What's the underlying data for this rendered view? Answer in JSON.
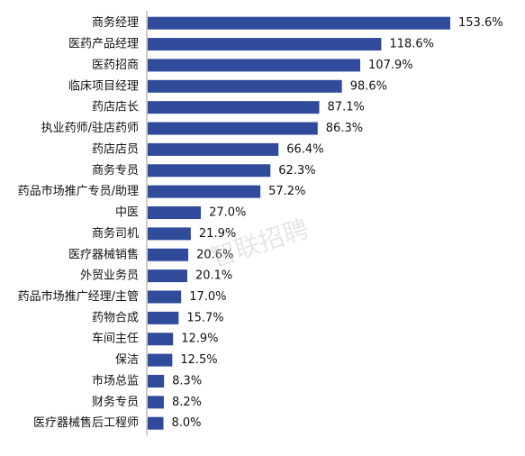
{
  "chart_data": {
    "type": "bar",
    "orientation": "horizontal",
    "categories": [
      "商务经理",
      "医药产品经理",
      "医药招商",
      "临床项目经理",
      "药店店长",
      "执业药师/驻店药师",
      "药店店员",
      "商务专员",
      "药品市场推广专员/助理",
      "中医",
      "商务司机",
      "医疗器械销售",
      "外贸业务员",
      "药品市场推广经理/主管",
      "药物合成",
      "车间主任",
      "保洁",
      "市场总监",
      "财务专员",
      "医疗器械售后工程师"
    ],
    "values": [
      153.6,
      118.6,
      107.9,
      98.6,
      87.1,
      86.3,
      66.4,
      62.3,
      57.2,
      27.0,
      21.9,
      20.6,
      20.1,
      17.0,
      15.7,
      12.9,
      12.5,
      8.3,
      8.2,
      8.0
    ],
    "value_labels": [
      "153.6%",
      "118.6%",
      "107.9%",
      "98.6%",
      "87.1%",
      "86.3%",
      "66.4%",
      "62.3%",
      "57.2%",
      "27.0%",
      "21.9%",
      "20.6%",
      "20.1%",
      "17.0%",
      "15.7%",
      "12.9%",
      "12.5%",
      "8.3%",
      "8.2%",
      "8.0%"
    ],
    "xlim": [
      0,
      153.6
    ],
    "grid": false,
    "bar_color": "#2f4b9a"
  },
  "watermark": {
    "text": "智联招聘"
  }
}
